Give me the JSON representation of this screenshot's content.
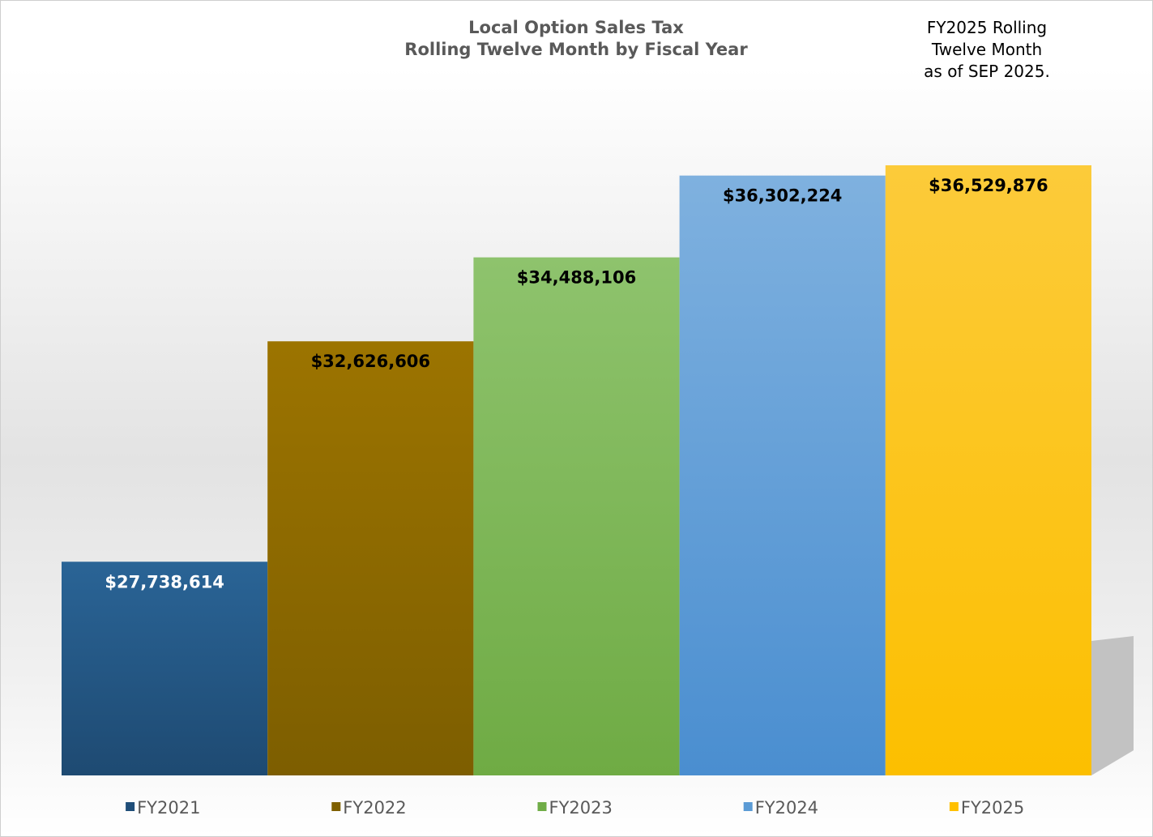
{
  "chart_data": {
    "type": "bar",
    "title": "Local Option Sales Tax",
    "subtitle": "Rolling Twelve Month by Fiscal Year",
    "annotation": [
      "FY2025 Rolling",
      "Twelve Month",
      "as of SEP 2025."
    ],
    "categories": [
      "FY2021",
      "FY2022",
      "FY2023",
      "FY2024",
      "FY2025"
    ],
    "values": [
      27738614,
      32626606,
      34488106,
      36302224,
      36529876
    ],
    "data_labels": [
      "$27,738,614",
      "$32,626,606",
      "$34,488,106",
      "$36,302,224",
      "$36,529,876"
    ],
    "ylim": [
      23000000,
      37500000
    ],
    "grid": false,
    "legend_position": "bottom",
    "colors": {
      "FY2021": [
        "#2a6496",
        "#1e4a72"
      ],
      "FY2022": [
        "#9c7400",
        "#7d5e00"
      ],
      "FY2023": [
        "#8ec36d",
        "#6fab44"
      ],
      "FY2024": [
        "#7fb1df",
        "#4a8ed0"
      ],
      "FY2025": [
        "#fccb3a",
        "#fcbf00"
      ]
    },
    "legend_colors": [
      "#1f4e79",
      "#7f6000",
      "#70ad47",
      "#5b9bd5",
      "#ffc000"
    ],
    "label_colors": [
      "#ffffff",
      "#000000",
      "#000000",
      "#000000",
      "#000000"
    ]
  }
}
